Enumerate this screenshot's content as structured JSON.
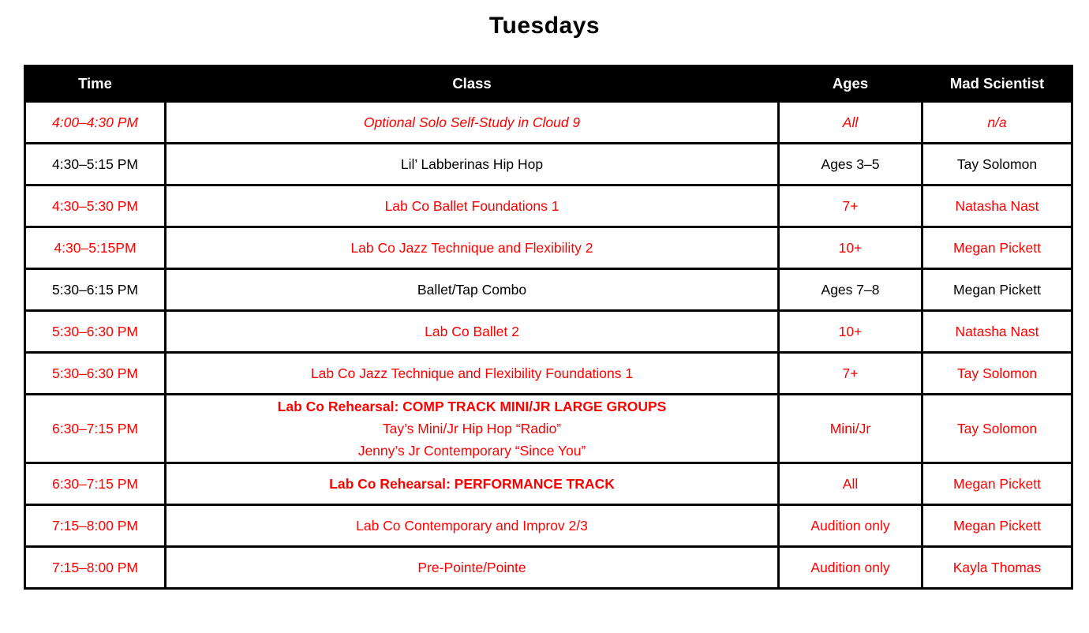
{
  "title": "Tuesdays",
  "colors": {
    "accent_red": "#FF0000",
    "header_bg": "#000000",
    "header_text": "#FFFFFF",
    "body_text": "#000000"
  },
  "table": {
    "headers": {
      "time": "Time",
      "class": "Class",
      "ages": "Ages",
      "teacher": "Mad Scientist"
    },
    "rows": [
      {
        "time": "4:00–4:30 PM",
        "class1": "Optional Solo Self-Study in Cloud 9",
        "ages": "All",
        "teacher": "n/a"
      },
      {
        "time": "4:30–5:15 PM",
        "class1": "Lil’ Labberinas Hip Hop",
        "ages": "Ages 3–5",
        "teacher": "Tay Solomon"
      },
      {
        "time": "4:30–5:30 PM",
        "class1": "Lab Co Ballet Foundations 1",
        "ages": "7+",
        "teacher": "Natasha Nast"
      },
      {
        "time": "4:30–5:15PM",
        "class1": "Lab Co Jazz Technique and Flexibility 2",
        "ages": "10+",
        "teacher": "Megan Pickett"
      },
      {
        "time": "5:30–6:15 PM",
        "class1": "Ballet/Tap Combo",
        "ages": "Ages 7–8",
        "teacher": "Megan Pickett"
      },
      {
        "time": "5:30–6:30 PM",
        "class1": "Lab Co Ballet 2",
        "ages": "10+",
        "teacher": "Natasha Nast"
      },
      {
        "time": "5:30–6:30 PM",
        "class1": "Lab Co Jazz Technique and Flexibility Foundations 1",
        "ages": "7+",
        "teacher": "Tay Solomon"
      },
      {
        "time": "6:30–7:15 PM",
        "class1": "Lab Co Rehearsal: COMP TRACK MINI/JR LARGE GROUPS",
        "class2": "Tay’s Mini/Jr Hip Hop “Radio”",
        "class3": "Jenny’s Jr Contemporary “Since You”",
        "ages": "Mini/Jr",
        "teacher": "Tay Solomon"
      },
      {
        "time": "6:30–7:15 PM",
        "class1": "Lab Co Rehearsal: PERFORMANCE TRACK",
        "ages": "All",
        "teacher": "Megan Pickett"
      },
      {
        "time": "7:15–8:00 PM",
        "class1": "Lab Co Contemporary and Improv 2/3",
        "ages": "Audition only",
        "teacher": "Megan Pickett"
      },
      {
        "time": "7:15–8:00 PM",
        "class1": "Pre-Pointe/Pointe",
        "ages": "Audition only",
        "teacher": "Kayla Thomas"
      }
    ]
  }
}
